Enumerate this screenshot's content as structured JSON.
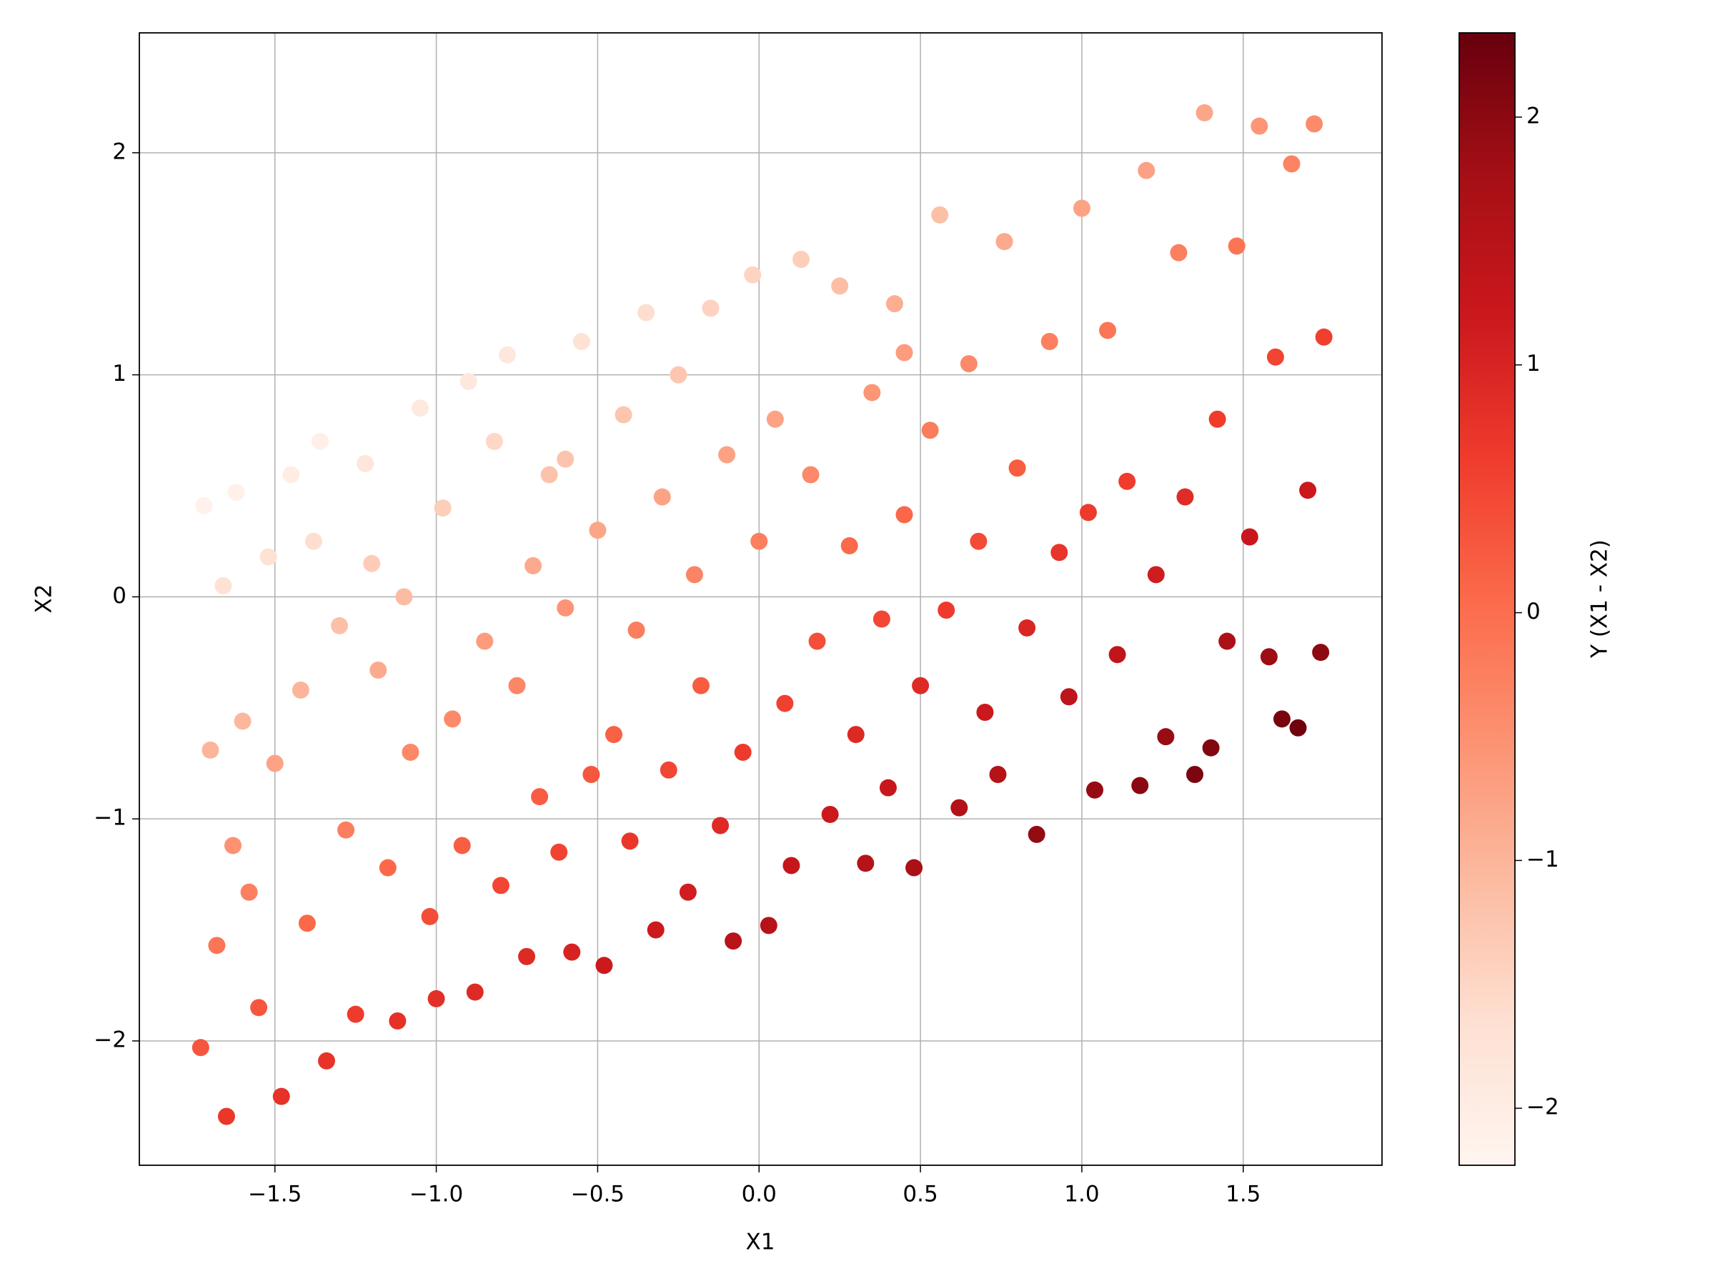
{
  "chart_data": {
    "type": "scatter",
    "xlabel": "X1",
    "ylabel": "X2",
    "xlim": [
      -1.92,
      1.93
    ],
    "ylim": [
      -2.56,
      2.54
    ],
    "xticks": [
      {
        "value": -1.5,
        "label": "−1.5"
      },
      {
        "value": -1.0,
        "label": "−1.0"
      },
      {
        "value": -0.5,
        "label": "−0.5"
      },
      {
        "value": 0,
        "label": "0.0"
      },
      0.5,
      {
        "value": 1.0,
        "label": "1.0"
      },
      1.5
    ],
    "yticks": [
      {
        "value": -2,
        "label": "−2"
      },
      {
        "value": -1,
        "label": "−1"
      },
      0,
      1,
      2
    ],
    "grid": true,
    "cmap": "Reds",
    "colorbar": {
      "label": "Y (X1 - X2)",
      "clim": [
        -2.23,
        2.34
      ],
      "ticks": [
        {
          "value": -2,
          "label": "−2"
        },
        {
          "value": -1,
          "label": "−1"
        },
        0,
        1,
        2
      ]
    },
    "x": [
      -1.72,
      -1.7,
      -1.73,
      -1.68,
      -1.65,
      -1.62,
      -1.6,
      -1.58,
      -1.55,
      -1.52,
      -1.5,
      -1.48,
      -1.45,
      -1.42,
      -1.4,
      -1.36,
      -1.34,
      -1.3,
      -1.28,
      -1.25,
      -1.22,
      -1.18,
      -1.15,
      -1.12,
      -1.1,
      -1.08,
      -1.05,
      -1.02,
      -1.0,
      -0.98,
      -0.95,
      -0.92,
      -0.9,
      -0.88,
      -0.85,
      -0.82,
      -0.8,
      -0.78,
      -0.75,
      -0.72,
      -0.7,
      -0.68,
      -0.65,
      -0.62,
      -0.6,
      -0.58,
      -0.55,
      -0.52,
      -0.5,
      -0.48,
      -0.45,
      -0.42,
      -0.4,
      -0.38,
      -0.35,
      -0.32,
      -0.3,
      -0.28,
      -0.25,
      -0.22,
      -0.2,
      -0.18,
      -0.15,
      -0.12,
      -0.1,
      -0.08,
      -0.05,
      -0.02,
      0.0,
      0.03,
      0.05,
      0.08,
      0.1,
      0.13,
      0.16,
      0.18,
      0.22,
      0.25,
      0.28,
      0.3,
      0.33,
      0.35,
      0.38,
      0.4,
      0.42,
      0.45,
      0.48,
      0.5,
      0.53,
      0.56,
      0.58,
      0.62,
      0.65,
      0.68,
      0.7,
      0.74,
      0.76,
      0.8,
      0.83,
      0.86,
      0.9,
      0.93,
      0.96,
      1.0,
      1.02,
      1.04,
      1.08,
      1.11,
      1.14,
      1.18,
      1.2,
      1.23,
      1.26,
      1.3,
      1.32,
      1.35,
      1.38,
      1.4,
      1.42,
      1.45,
      1.48,
      1.52,
      1.55,
      1.58,
      1.6,
      1.62,
      1.65,
      1.67,
      1.7,
      1.72,
      1.74,
      1.75,
      -1.66,
      -1.63,
      -1.38,
      -1.2,
      0.45,
      -0.6
    ],
    "y": [
      0.41,
      -0.69,
      -2.03,
      -1.57,
      -2.34,
      0.47,
      -0.56,
      -1.33,
      -1.85,
      0.18,
      -0.75,
      -2.25,
      0.55,
      -0.42,
      -1.47,
      0.7,
      -2.09,
      -0.13,
      -1.05,
      -1.88,
      0.6,
      -0.33,
      -1.22,
      -1.91,
      0.0,
      -0.7,
      0.85,
      -1.44,
      -1.81,
      0.4,
      -0.55,
      -1.12,
      0.97,
      -1.78,
      -0.2,
      0.7,
      -1.3,
      1.09,
      -0.4,
      -1.62,
      0.14,
      -0.9,
      0.55,
      -1.15,
      -0.05,
      -1.6,
      1.15,
      -0.8,
      0.3,
      -1.66,
      -0.62,
      0.82,
      -1.1,
      -0.15,
      1.28,
      -1.5,
      0.45,
      -0.78,
      1.0,
      -1.33,
      0.1,
      -0.4,
      1.3,
      -1.03,
      0.64,
      -1.55,
      -0.7,
      1.45,
      0.25,
      -1.48,
      0.8,
      -0.48,
      -1.21,
      1.52,
      0.55,
      -0.2,
      -0.98,
      1.4,
      0.23,
      -0.62,
      -1.2,
      0.92,
      -0.1,
      -0.86,
      1.32,
      0.37,
      -1.22,
      -0.4,
      0.75,
      1.72,
      -0.06,
      -0.95,
      1.05,
      0.25,
      -0.52,
      -0.8,
      1.6,
      0.58,
      -0.14,
      -1.07,
      1.15,
      0.2,
      -0.45,
      1.75,
      0.38,
      -0.87,
      1.2,
      -0.26,
      0.52,
      -0.85,
      1.92,
      0.1,
      -0.63,
      1.55,
      0.45,
      -0.8,
      2.18,
      -0.68,
      0.8,
      -0.2,
      1.58,
      0.27,
      2.12,
      -0.27,
      1.08,
      -0.55,
      1.95,
      -0.59,
      0.48,
      2.13,
      -0.25,
      1.17,
      0.05,
      -1.12,
      0.25,
      0.15,
      1.1,
      0.62
    ],
    "c": [
      -2.13,
      -1.01,
      0.3,
      -0.11,
      0.69,
      -2.09,
      -1.04,
      -0.25,
      0.3,
      -1.7,
      -0.75,
      0.77,
      -2.0,
      -1.0,
      0.07,
      -2.06,
      0.75,
      -1.17,
      -0.23,
      0.63,
      -1.82,
      -0.85,
      0.07,
      0.79,
      -1.1,
      -0.38,
      -1.9,
      0.42,
      0.81,
      -1.38,
      -0.4,
      0.2,
      -1.87,
      0.9,
      -0.65,
      -1.52,
      0.5,
      -1.87,
      -0.35,
      0.9,
      -0.84,
      0.22,
      -1.2,
      0.53,
      -0.55,
      1.02,
      -1.7,
      0.28,
      -0.8,
      1.18,
      0.17,
      -1.24,
      0.7,
      -0.23,
      -1.63,
      1.18,
      -0.75,
      0.5,
      -1.25,
      1.11,
      -0.3,
      0.22,
      -1.45,
      0.91,
      -0.74,
      1.47,
      0.65,
      -1.47,
      -0.25,
      1.51,
      -0.75,
      0.56,
      1.31,
      -1.39,
      -0.39,
      0.38,
      1.2,
      -1.15,
      0.05,
      0.92,
      1.53,
      -0.57,
      0.48,
      1.26,
      -0.9,
      0.08,
      1.7,
      0.9,
      -0.22,
      -1.16,
      0.64,
      1.57,
      -0.4,
      0.43,
      1.22,
      1.54,
      -0.84,
      0.22,
      0.97,
      1.93,
      -0.25,
      0.73,
      1.41,
      -0.75,
      0.64,
      1.91,
      -0.12,
      1.37,
      0.62,
      2.03,
      -0.72,
      1.13,
      1.89,
      -0.25,
      0.87,
      2.15,
      -0.8,
      2.08,
      0.62,
      1.65,
      -0.1,
      1.25,
      -0.57,
      1.85,
      0.52,
      2.17,
      -0.3,
      2.26,
      1.22,
      -0.41,
      1.99,
      0.58,
      -1.71,
      -0.51,
      -1.63,
      -1.35,
      -0.65,
      -1.22
    ]
  }
}
